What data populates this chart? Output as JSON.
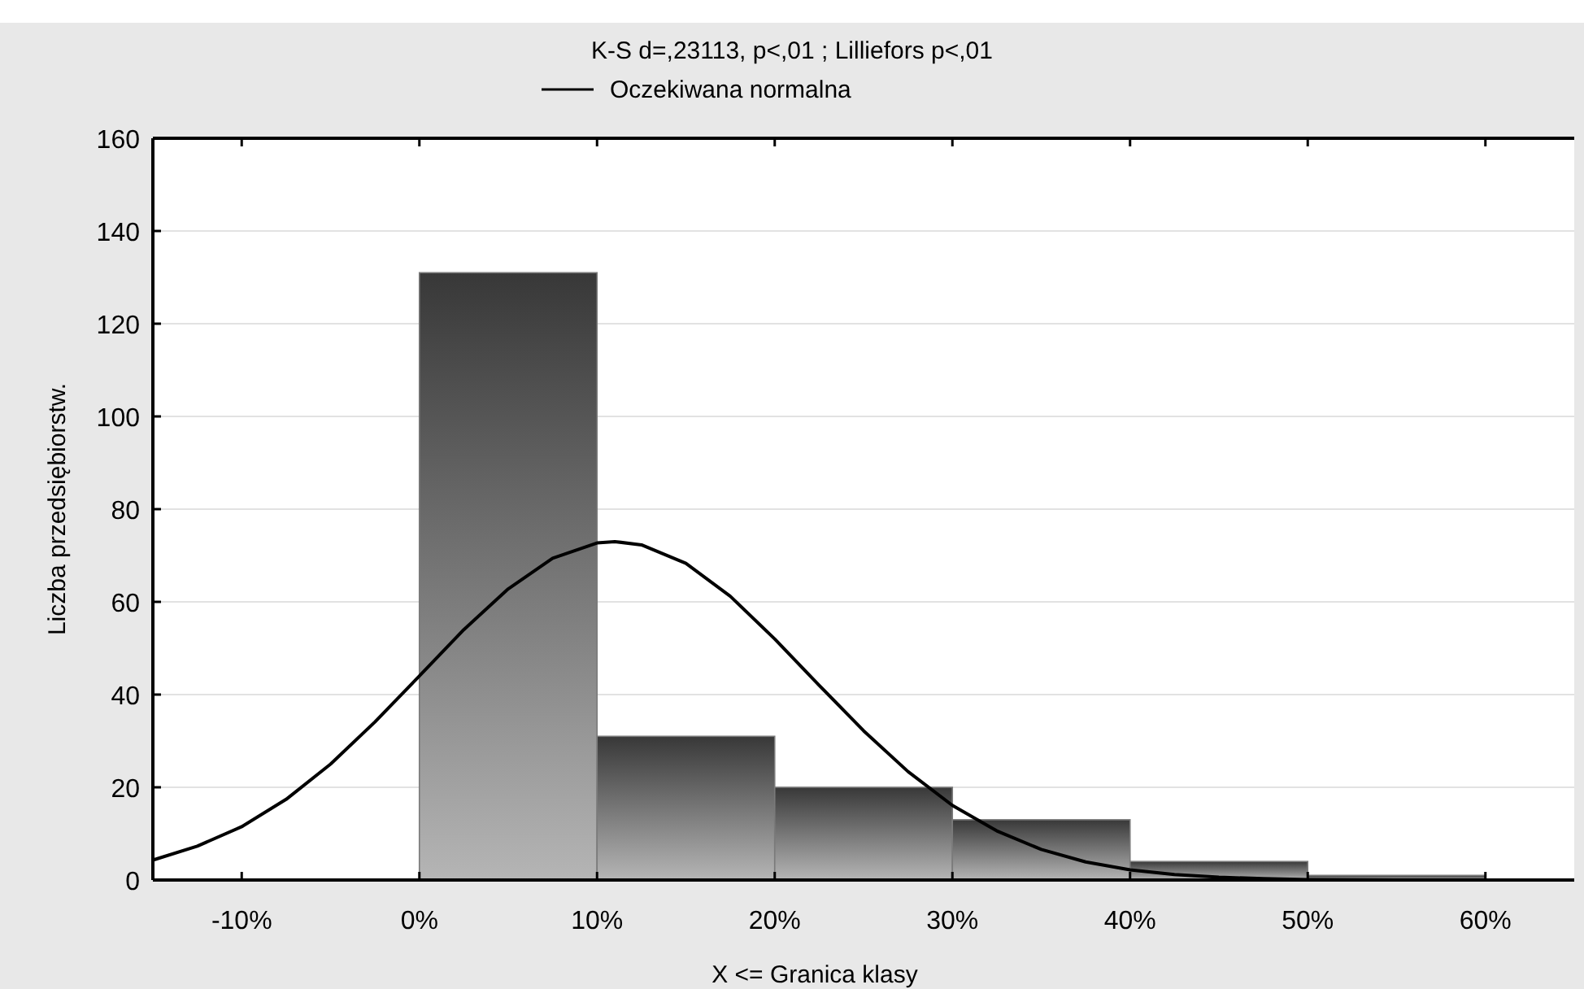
{
  "chart_data": {
    "type": "histogram",
    "title": "K-S d=,23113, p<,01 ; Lilliefors p<,01",
    "xlabel": "X <= Granica klasy",
    "ylabel": "Liczba przedsiębiorstw.",
    "bins": [
      0,
      10,
      20,
      30,
      40,
      50,
      60
    ],
    "values": [
      131,
      31,
      20,
      13,
      4,
      1
    ],
    "color": "#7a7a7a",
    "series": [
      {
        "type": "line",
        "name": "Oczekiwana normalna",
        "color": "#000000",
        "x": [
          -15,
          -12.5,
          -10,
          -7.5,
          -5,
          -2.5,
          0,
          2.5,
          5,
          7.5,
          10,
          11,
          12.5,
          15,
          17.5,
          20,
          22.5,
          25,
          27.5,
          30,
          32.5,
          35,
          37.5,
          40,
          42.5,
          45,
          47.5,
          50,
          55,
          60,
          65
        ],
        "values": [
          4.3,
          7.3,
          11.5,
          17.4,
          25,
          34.1,
          44,
          54,
          62.8,
          69.4,
          72.7,
          73,
          72.3,
          68.3,
          61.2,
          52,
          42,
          32.2,
          23.4,
          16.1,
          10.6,
          6.6,
          3.9,
          2.2,
          1.2,
          0.6,
          0.3,
          0.1,
          0,
          0,
          0
        ]
      }
    ],
    "xlim": [
      -15,
      65
    ],
    "xticks": [
      {
        "value": -10,
        "label": "-10%"
      },
      {
        "value": 0,
        "label": "0%"
      },
      {
        "value": 10,
        "label": "10%"
      },
      {
        "value": 20,
        "label": "20%"
      },
      {
        "value": 30,
        "label": "30%"
      },
      {
        "value": 40,
        "label": "40%"
      },
      {
        "value": 50,
        "label": "50%"
      },
      {
        "value": 60,
        "label": "60%"
      }
    ],
    "ylim": [
      0,
      160
    ],
    "yticks": [
      0,
      20,
      40,
      60,
      80,
      100,
      120,
      140,
      160
    ],
    "grid": "y",
    "legend": "top",
    "line_style": "solid",
    "marker": "none"
  }
}
